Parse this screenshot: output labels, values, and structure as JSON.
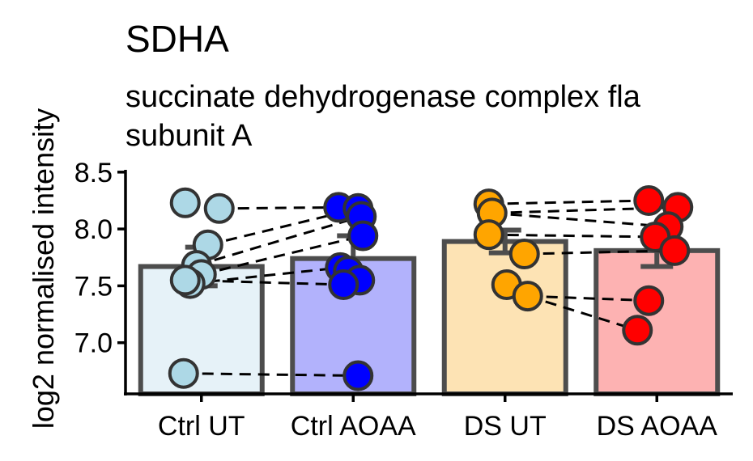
{
  "chart_data": {
    "type": "bar",
    "title": "SDHA",
    "subtitle_lines": [
      "succinate dehydrogenase complex fla",
      "subunit A"
    ],
    "ylabel": "log2 normalised intensity",
    "xlabel": "",
    "ylim": [
      6.55,
      8.52
    ],
    "yticks": [
      7.0,
      7.5,
      8.0,
      8.5
    ],
    "ytick_labels": [
      "7.0",
      "7.5",
      "8.0",
      "8.5"
    ],
    "categories": [
      "Ctrl UT",
      "Ctrl AOAA",
      "DS UT",
      "DS AOAA"
    ],
    "values": [
      7.67,
      7.74,
      7.89,
      7.81
    ],
    "errors": [
      0.17,
      0.2,
      0.1,
      0.14
    ],
    "bar_fill_colors": [
      "#e6f2f8",
      "#b2b2fc",
      "#fde3b4",
      "#fdb2b2"
    ],
    "point_colors": [
      "#add8e6",
      "#0000ff",
      "#ffa500",
      "#ff0000"
    ],
    "grid": false,
    "legend": "none",
    "points": [
      [
        8.23,
        8.18,
        7.86,
        7.68,
        7.6,
        7.52,
        7.55,
        6.73
      ],
      [
        8.19,
        8.18,
        8.11,
        7.94,
        7.66,
        7.63,
        7.55,
        7.51,
        6.71
      ],
      [
        8.22,
        8.14,
        7.95,
        7.78,
        7.51,
        7.41
      ],
      [
        8.25,
        8.19,
        8.02,
        7.93,
        7.81,
        7.37,
        7.11
      ]
    ],
    "pairs": [
      [
        [
          0,
          8.18
        ],
        [
          1,
          8.19
        ]
      ],
      [
        [
          0,
          7.86
        ],
        [
          1,
          8.18
        ]
      ],
      [
        [
          0,
          7.68
        ],
        [
          1,
          8.11
        ]
      ],
      [
        [
          0,
          7.6
        ],
        [
          1,
          7.94
        ]
      ],
      [
        [
          0,
          7.52
        ],
        [
          1,
          7.66
        ]
      ],
      [
        [
          0,
          7.55
        ],
        [
          1,
          7.51
        ]
      ],
      [
        [
          0,
          6.73
        ],
        [
          1,
          6.71
        ]
      ],
      [
        [
          2,
          8.22
        ],
        [
          3,
          8.25
        ]
      ],
      [
        [
          2,
          8.14
        ],
        [
          3,
          8.19
        ]
      ],
      [
        [
          2,
          8.18
        ],
        [
          3,
          8.02
        ]
      ],
      [
        [
          2,
          7.95
        ],
        [
          3,
          7.93
        ]
      ],
      [
        [
          2,
          7.78
        ],
        [
          3,
          7.81
        ]
      ],
      [
        [
          2,
          7.41
        ],
        [
          3,
          7.37
        ]
      ],
      [
        [
          2,
          7.41
        ],
        [
          3,
          7.11
        ]
      ]
    ]
  }
}
